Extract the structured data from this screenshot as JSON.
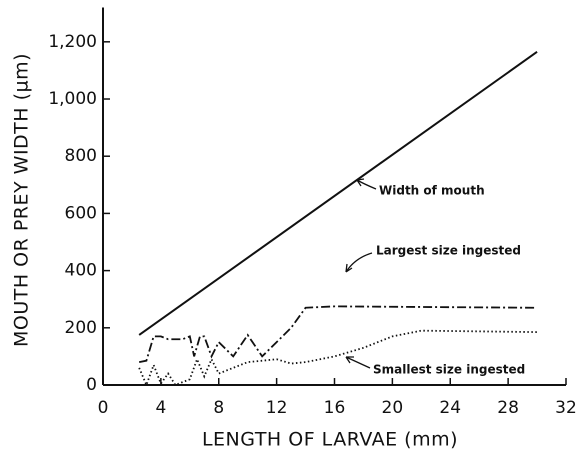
{
  "chart_data": {
    "type": "line",
    "xlabel": "LENGTH OF LARVAE (mm)",
    "ylabel": "MOUTH OR PREY WIDTH (µm)",
    "xlim": [
      0,
      32
    ],
    "xticks": [
      0,
      4,
      8,
      12,
      16,
      20,
      24,
      28,
      32
    ],
    "ylim": [
      0,
      1320
    ],
    "yticks": [
      0,
      200,
      400,
      600,
      800,
      {
        "value": 1000,
        "label": "1,000"
      },
      {
        "value": 1200,
        "label": "1,200"
      }
    ],
    "series": [
      {
        "name": "Width of mouth",
        "color": "#111111",
        "style": "solid",
        "x": [
          2.5,
          30
        ],
        "values": [
          175,
          1165
        ]
      },
      {
        "name": "Largest size ingested",
        "color": "#111111",
        "style": "dashdot",
        "x": [
          2.5,
          3,
          3.5,
          4,
          4.5,
          5.5,
          6,
          6.3,
          6.7,
          7,
          7.5,
          8,
          9,
          10,
          11,
          12,
          13,
          14,
          16,
          30
        ],
        "values": [
          80,
          85,
          170,
          170,
          160,
          160,
          170,
          100,
          170,
          170,
          100,
          150,
          100,
          175,
          100,
          150,
          200,
          270,
          275,
          270
        ]
      },
      {
        "name": "Smallest size ingested",
        "color": "#111111",
        "style": "dotted",
        "x": [
          2.5,
          3,
          3.5,
          4,
          4.5,
          5,
          6,
          6.5,
          7,
          7.5,
          8,
          10,
          12,
          13,
          14,
          16,
          18,
          20,
          22,
          30
        ],
        "values": [
          60,
          0,
          70,
          5,
          40,
          0,
          20,
          90,
          30,
          90,
          40,
          80,
          90,
          75,
          80,
          100,
          130,
          170,
          190,
          185
        ]
      }
    ]
  }
}
